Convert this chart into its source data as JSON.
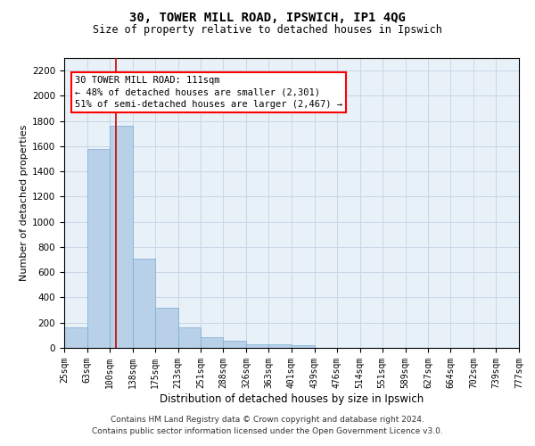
{
  "title": "30, TOWER MILL ROAD, IPSWICH, IP1 4QG",
  "subtitle": "Size of property relative to detached houses in Ipswich",
  "xlabel": "Distribution of detached houses by size in Ipswich",
  "ylabel": "Number of detached properties",
  "footer_line1": "Contains HM Land Registry data © Crown copyright and database right 2024.",
  "footer_line2": "Contains public sector information licensed under the Open Government Licence v3.0.",
  "bar_color": "#b8d0e8",
  "bar_edge_color": "#7aadd4",
  "grid_color": "#c8d8e8",
  "bg_color": "#e8f0f8",
  "annotation_text": "30 TOWER MILL ROAD: 111sqm\n← 48% of detached houses are smaller (2,301)\n51% of semi-detached houses are larger (2,467) →",
  "vline_color": "#cc0000",
  "vline_x": 111,
  "bins": [
    25,
    63,
    100,
    138,
    175,
    213,
    251,
    288,
    326,
    363,
    401,
    439,
    476,
    514,
    551,
    589,
    627,
    664,
    702,
    739,
    777
  ],
  "bin_labels": [
    "25sqm",
    "63sqm",
    "100sqm",
    "138sqm",
    "175sqm",
    "213sqm",
    "251sqm",
    "288sqm",
    "326sqm",
    "363sqm",
    "401sqm",
    "439sqm",
    "476sqm",
    "514sqm",
    "551sqm",
    "589sqm",
    "627sqm",
    "664sqm",
    "702sqm",
    "739sqm",
    "777sqm"
  ],
  "bar_heights": [
    160,
    1580,
    1760,
    710,
    320,
    160,
    85,
    55,
    30,
    25,
    20,
    0,
    0,
    0,
    0,
    0,
    0,
    0,
    0,
    0
  ],
  "ylim": [
    0,
    2300
  ],
  "yticks": [
    0,
    200,
    400,
    600,
    800,
    1000,
    1200,
    1400,
    1600,
    1800,
    2000,
    2200
  ]
}
